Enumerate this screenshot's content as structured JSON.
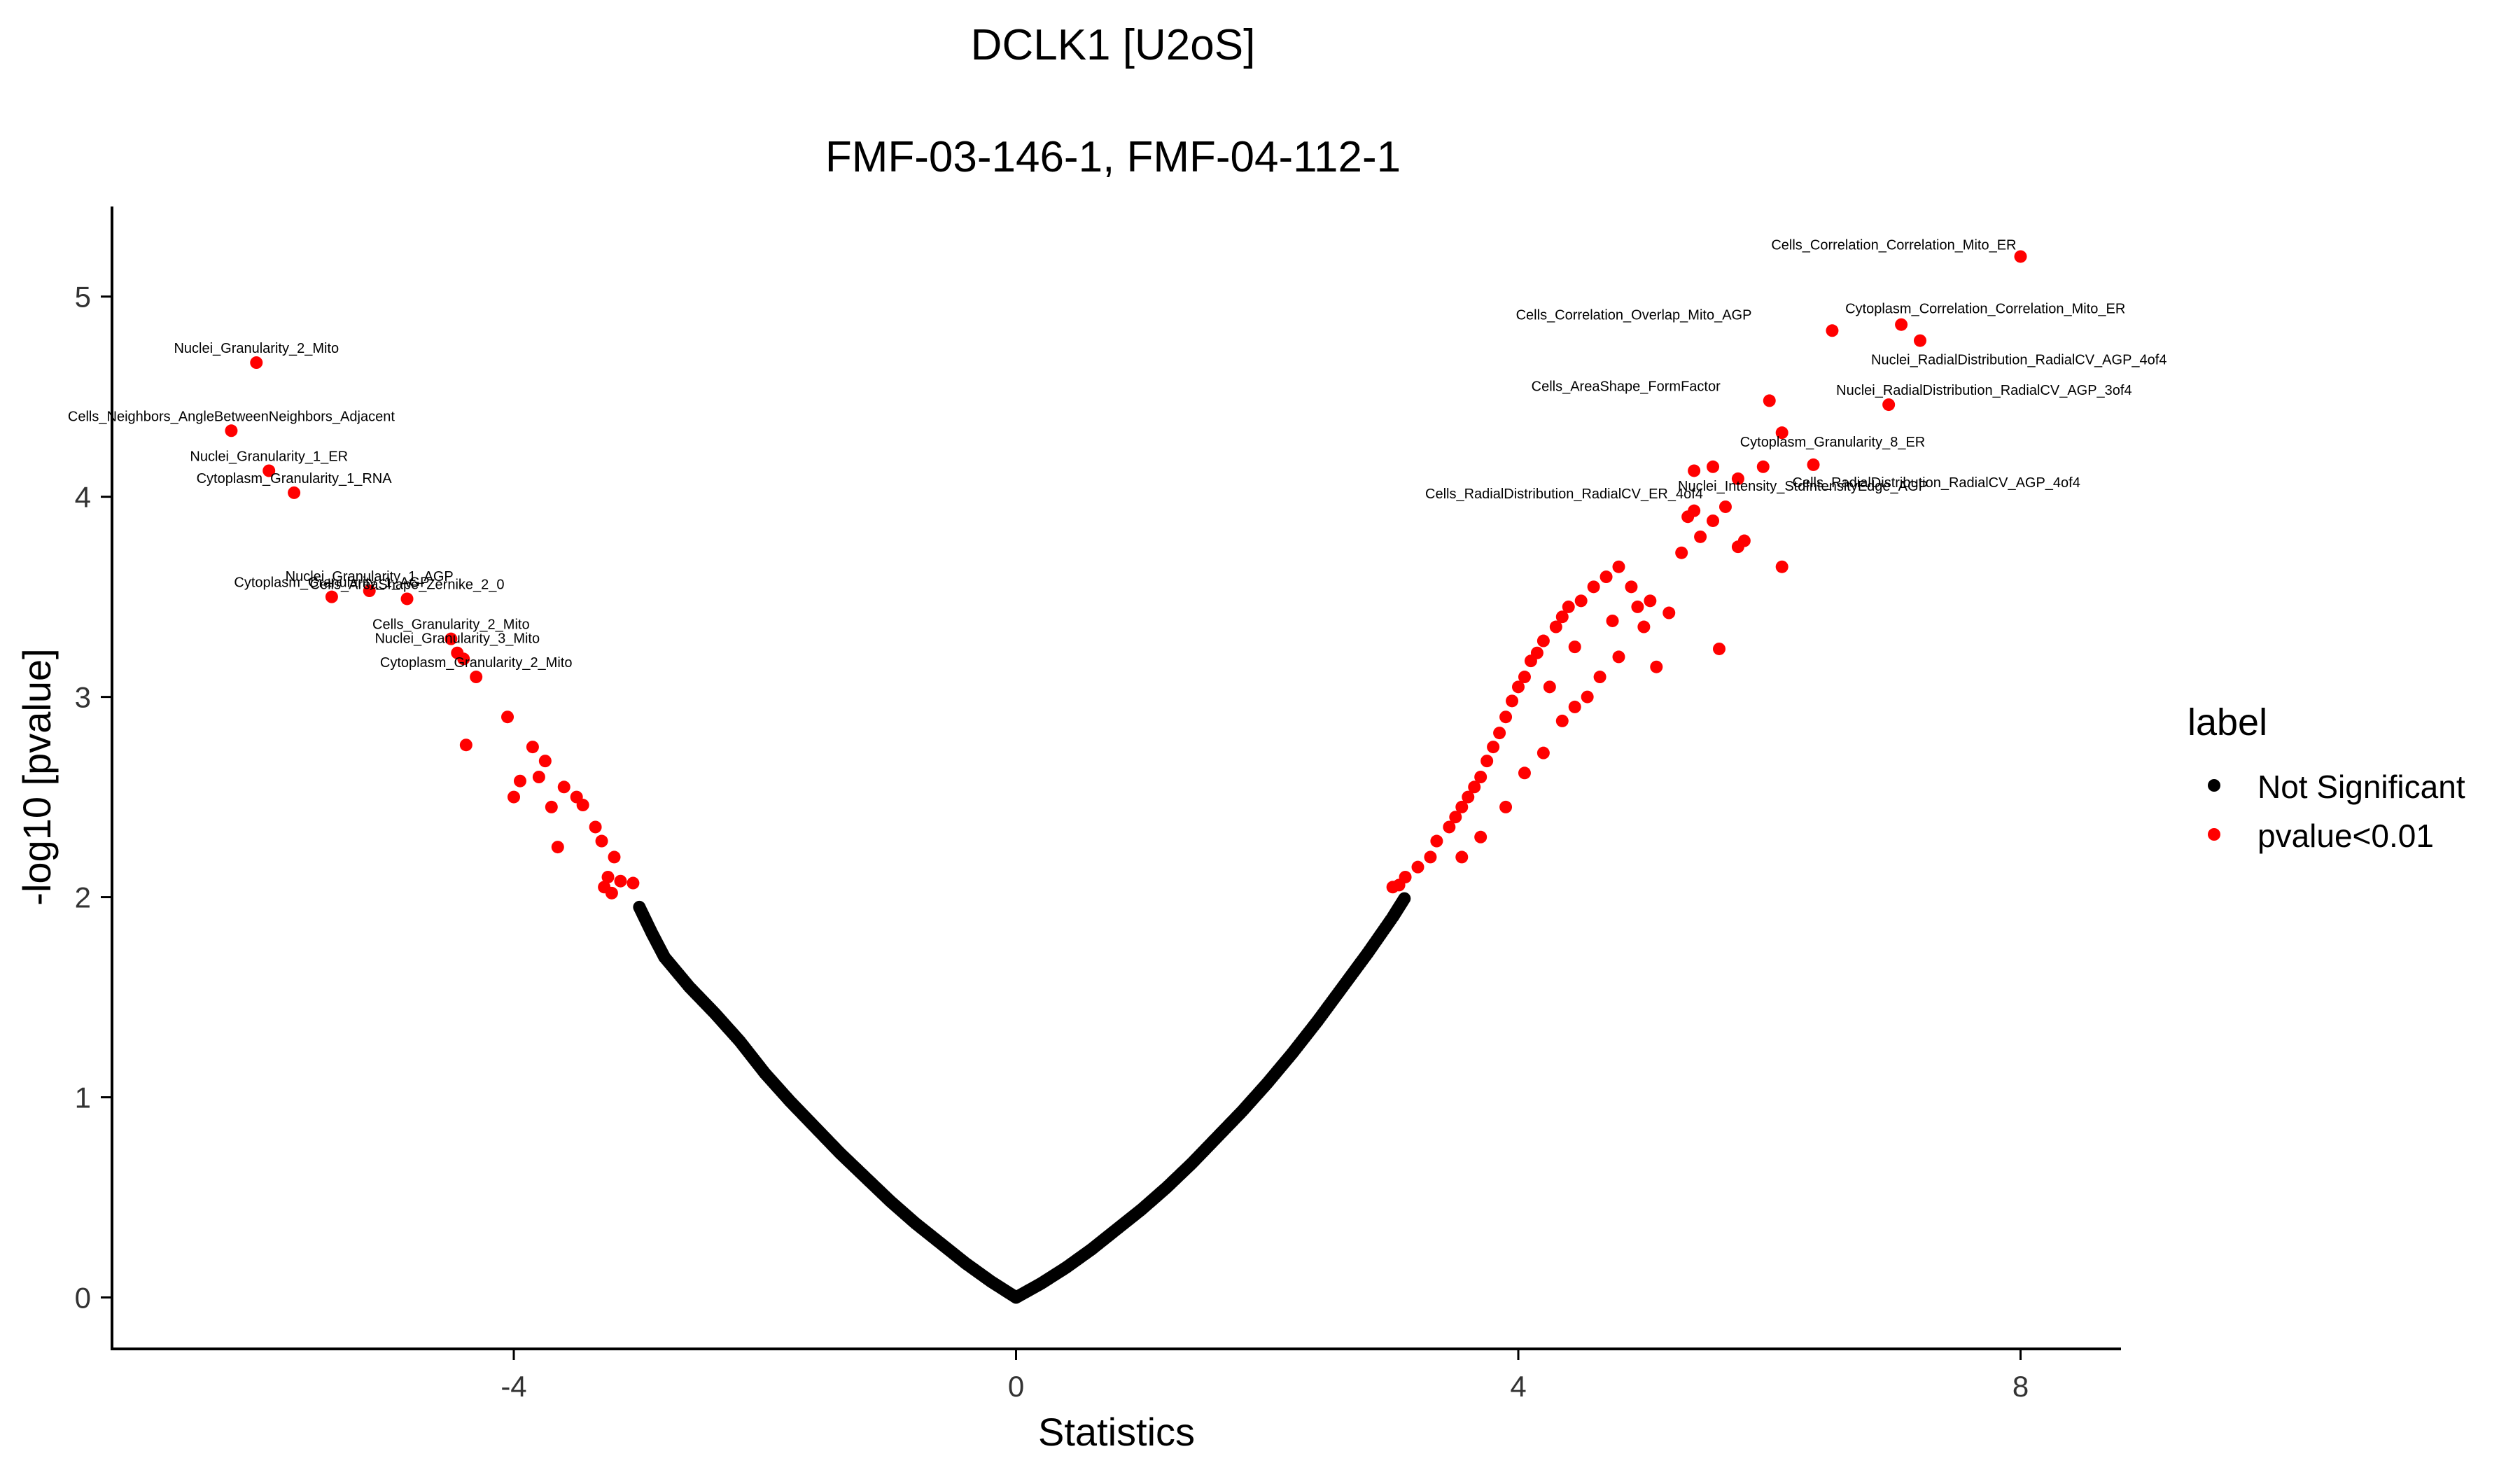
{
  "chart_data": {
    "type": "scatter",
    "title": "DCLK1 [U2oS]",
    "subtitle": "FMF-03-146-1, FMF-04-112-1",
    "xlabel": "Statistics",
    "ylabel": "-log10 [pvalue]",
    "xlim": [
      -7.2,
      8.8
    ],
    "ylim": [
      -0.25,
      5.45
    ],
    "x_ticks": [
      -4,
      0,
      4,
      8
    ],
    "y_ticks": [
      0,
      1,
      2,
      3,
      4,
      5
    ],
    "grid": false,
    "legend": {
      "title": "label",
      "position": "right",
      "entries": [
        {
          "name": "Not Significant",
          "color": "#000000"
        },
        {
          "name": "pvalue<0.01",
          "color": "#ff0000"
        }
      ]
    },
    "curve": {
      "description": "volcano points follow -log10(p) vs statistic; non-significant points lie along the V",
      "curve_points": [
        [
          -3.0,
          1.95
        ],
        [
          -2.9,
          1.82
        ],
        [
          -2.8,
          1.7
        ],
        [
          -2.6,
          1.55
        ],
        [
          -2.4,
          1.42
        ],
        [
          -2.2,
          1.28
        ],
        [
          -2.0,
          1.12
        ],
        [
          -1.8,
          0.98
        ],
        [
          -1.6,
          0.85
        ],
        [
          -1.4,
          0.72
        ],
        [
          -1.2,
          0.6
        ],
        [
          -1.0,
          0.48
        ],
        [
          -0.8,
          0.37
        ],
        [
          -0.6,
          0.27
        ],
        [
          -0.4,
          0.17
        ],
        [
          -0.2,
          0.08
        ],
        [
          0.0,
          0.0
        ],
        [
          0.2,
          0.07
        ],
        [
          0.4,
          0.15
        ],
        [
          0.6,
          0.24
        ],
        [
          0.8,
          0.34
        ],
        [
          1.0,
          0.44
        ],
        [
          1.2,
          0.55
        ],
        [
          1.4,
          0.67
        ],
        [
          1.6,
          0.8
        ],
        [
          1.8,
          0.93
        ],
        [
          2.0,
          1.07
        ],
        [
          2.2,
          1.22
        ],
        [
          2.4,
          1.38
        ],
        [
          2.6,
          1.55
        ],
        [
          2.8,
          1.72
        ],
        [
          3.0,
          1.9
        ],
        [
          3.1,
          2.0
        ]
      ]
    },
    "significant_points": [
      [
        -6.05,
        4.67
      ],
      [
        -6.25,
        4.33
      ],
      [
        -5.95,
        4.13
      ],
      [
        -5.75,
        4.02
      ],
      [
        -5.45,
        3.5
      ],
      [
        -5.15,
        3.53
      ],
      [
        -4.85,
        3.49
      ],
      [
        -4.5,
        3.29
      ],
      [
        -4.45,
        3.22
      ],
      [
        -4.4,
        3.19
      ],
      [
        -4.3,
        3.1
      ],
      [
        -4.05,
        2.9
      ],
      [
        -4.38,
        2.76
      ],
      [
        -3.85,
        2.75
      ],
      [
        -3.75,
        2.68
      ],
      [
        -3.8,
        2.6
      ],
      [
        -3.95,
        2.58
      ],
      [
        -4.0,
        2.5
      ],
      [
        -3.6,
        2.55
      ],
      [
        -3.5,
        2.5
      ],
      [
        -3.45,
        2.46
      ],
      [
        -3.7,
        2.45
      ],
      [
        -3.65,
        2.25
      ],
      [
        -3.35,
        2.35
      ],
      [
        -3.3,
        2.28
      ],
      [
        -3.2,
        2.2
      ],
      [
        -3.25,
        2.1
      ],
      [
        -3.15,
        2.08
      ],
      [
        -3.05,
        2.07
      ],
      [
        -3.28,
        2.05
      ],
      [
        -3.22,
        2.02
      ],
      [
        3.0,
        2.05
      ],
      [
        3.05,
        2.06
      ],
      [
        3.1,
        2.1
      ],
      [
        3.2,
        2.15
      ],
      [
        3.3,
        2.2
      ],
      [
        3.35,
        2.28
      ],
      [
        3.45,
        2.35
      ],
      [
        3.5,
        2.4
      ],
      [
        3.55,
        2.45
      ],
      [
        3.6,
        2.5
      ],
      [
        3.65,
        2.55
      ],
      [
        3.7,
        2.6
      ],
      [
        3.75,
        2.68
      ],
      [
        3.8,
        2.75
      ],
      [
        3.85,
        2.82
      ],
      [
        3.9,
        2.9
      ],
      [
        3.95,
        2.98
      ],
      [
        4.0,
        3.05
      ],
      [
        4.05,
        3.1
      ],
      [
        4.1,
        3.18
      ],
      [
        4.15,
        3.22
      ],
      [
        4.2,
        3.28
      ],
      [
        4.3,
        3.35
      ],
      [
        4.35,
        3.4
      ],
      [
        4.4,
        3.45
      ],
      [
        3.55,
        2.2
      ],
      [
        3.7,
        2.3
      ],
      [
        3.9,
        2.45
      ],
      [
        4.05,
        2.62
      ],
      [
        4.2,
        2.72
      ],
      [
        4.35,
        2.88
      ],
      [
        4.45,
        2.95
      ],
      [
        4.55,
        3.0
      ],
      [
        4.65,
        3.1
      ],
      [
        4.8,
        3.2
      ],
      [
        4.5,
        3.48
      ],
      [
        4.6,
        3.55
      ],
      [
        4.7,
        3.6
      ],
      [
        4.8,
        3.65
      ],
      [
        4.9,
        3.55
      ],
      [
        5.0,
        3.35
      ],
      [
        5.1,
        3.15
      ],
      [
        5.2,
        3.42
      ],
      [
        5.3,
        3.72
      ],
      [
        5.35,
        3.9
      ],
      [
        5.4,
        3.93
      ],
      [
        5.45,
        3.8
      ],
      [
        5.55,
        3.88
      ],
      [
        5.6,
        3.24
      ],
      [
        5.65,
        3.95
      ],
      [
        5.75,
        3.75
      ],
      [
        5.8,
        3.78
      ],
      [
        6.1,
        3.65
      ],
      [
        5.4,
        4.13
      ],
      [
        5.55,
        4.15
      ],
      [
        5.75,
        4.09
      ],
      [
        5.95,
        4.15
      ],
      [
        6.35,
        4.16
      ],
      [
        6.1,
        4.32
      ],
      [
        6.0,
        4.48
      ],
      [
        6.95,
        4.46
      ],
      [
        6.5,
        4.83
      ],
      [
        7.05,
        4.86
      ],
      [
        7.2,
        4.78
      ],
      [
        8.0,
        5.2
      ],
      [
        4.25,
        3.05
      ],
      [
        4.45,
        3.25
      ],
      [
        4.75,
        3.38
      ],
      [
        4.95,
        3.45
      ],
      [
        5.05,
        3.48
      ]
    ],
    "labels": [
      {
        "text": "Cells_Correlation_Correlation_Mito_ER",
        "x": 8.0,
        "y": 5.2
      },
      {
        "text": "Cells_Correlation_Overlap_Mito_AGP",
        "x": 6.5,
        "y": 4.83
      },
      {
        "text": "Cytoplasm_Correlation_Correlation_Mito_ER",
        "x": 7.05,
        "y": 4.86
      },
      {
        "text": "Nuclei_RadialDistribution_RadialCV_AGP_4of4",
        "x": 7.2,
        "y": 4.78
      },
      {
        "text": "Cells_AreaShape_FormFactor",
        "x": 6.0,
        "y": 4.48
      },
      {
        "text": "Nuclei_RadialDistribution_RadialCV_AGP_3of4",
        "x": 6.95,
        "y": 4.46
      },
      {
        "text": "Cytoplasm_Granularity_8_ER",
        "x": 6.1,
        "y": 4.32
      },
      {
        "text": "Nuclei_Intensity_StdIntensityEdge_AGP",
        "x": 5.55,
        "y": 4.15
      },
      {
        "text": "Cells_RadialDistribution_RadialCV_ER_4of4",
        "x": 5.75,
        "y": 4.09
      },
      {
        "text": "Cells_RadialDistribution_RadialCV_AGP_4of4",
        "x": 6.35,
        "y": 4.16
      },
      {
        "text": "Nuclei_Granularity_2_Mito",
        "x": -6.05,
        "y": 4.67
      },
      {
        "text": "Cells_Neighbors_AngleBetweenNeighbors_Adjacent",
        "x": -6.25,
        "y": 4.33
      },
      {
        "text": "Nuclei_Granularity_1_ER",
        "x": -5.95,
        "y": 4.13
      },
      {
        "text": "Cytoplasm_Granularity_1_RNA",
        "x": -5.75,
        "y": 4.02
      },
      {
        "text": "Nuclei_Granularity_1_AGP",
        "x": -5.15,
        "y": 3.53
      },
      {
        "text": "Cytoplasm_Granularity_1_AGP",
        "x": -5.45,
        "y": 3.5
      },
      {
        "text": "Cells_AreaShape_Zernike_2_0",
        "x": -4.85,
        "y": 3.49
      },
      {
        "text": "Nuclei_Granularity_3_Mito",
        "x": -4.45,
        "y": 3.22
      },
      {
        "text": "Cells_Granularity_2_Mito",
        "x": -4.5,
        "y": 3.29
      },
      {
        "text": "Cytoplasm_Granularity_2_Mito",
        "x": -4.3,
        "y": 3.1
      }
    ]
  }
}
